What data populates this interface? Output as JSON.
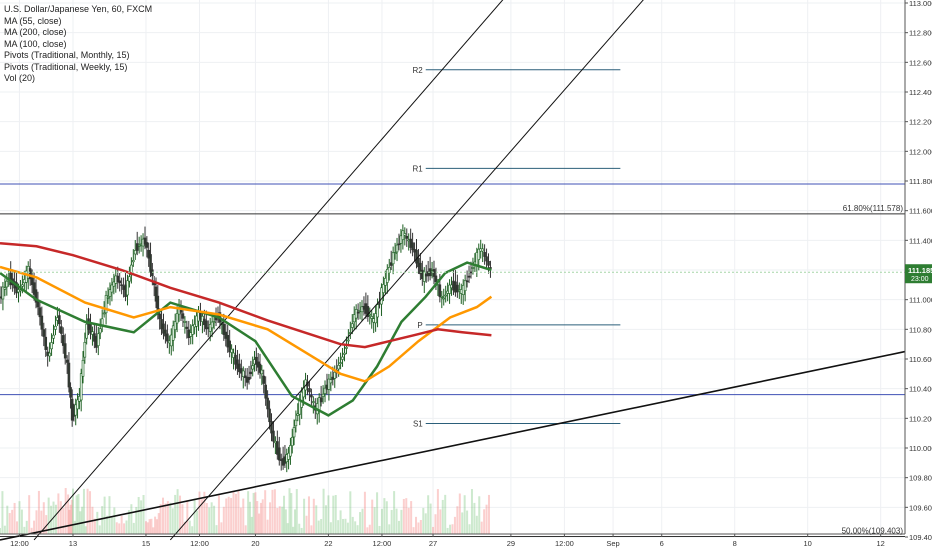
{
  "legend": {
    "symbol_line": "U.S. Dollar/Japanese Yen, 60, FXCM",
    "indicators": [
      "MA (55, close)",
      "MA (200, close)",
      "MA (100, close)",
      "Pivots (Traditional, Monthly, 15)",
      "Pivots (Traditional, Weekly, 15)",
      "Vol (20)"
    ]
  },
  "chart_data": {
    "type": "line",
    "title": "U.S. Dollar/Japanese Yen, 60, FXCM",
    "xlabel": "",
    "ylabel": "",
    "ylim": [
      109.4,
      113.0
    ],
    "y_ticks": [
      "113.000",
      "112.800",
      "112.600",
      "112.400",
      "112.200",
      "112.000",
      "111.800",
      "111.600",
      "111.400",
      "111.200",
      "111.000",
      "110.800",
      "110.600",
      "110.400",
      "110.200",
      "110.000",
      "109.800",
      "109.600",
      "109.400"
    ],
    "x_ticks": [
      "12:00",
      "13",
      "15",
      "12:00",
      "20",
      "22",
      "12:00",
      "27",
      "29",
      "12:00",
      "Sep",
      "6",
      "8",
      "10",
      "12"
    ],
    "x_range_index": [
      0,
      372
    ],
    "x_tick_index": [
      8,
      30,
      60,
      82,
      105,
      135,
      157,
      178,
      210,
      232,
      252,
      272,
      302,
      332,
      362
    ],
    "last_price": {
      "value": 111.185,
      "label": "111.185",
      "countdown": "23:00"
    },
    "fib_levels": [
      {
        "label": "61.80%(111.578)",
        "value": 111.578
      },
      {
        "label": "50.00%(109.403)",
        "value": 109.403
      }
    ],
    "pivots_weekly": [
      {
        "label": "R2",
        "value": 112.55
      },
      {
        "label": "R1",
        "value": 111.885
      },
      {
        "label": "P",
        "value": 110.83
      },
      {
        "label": "S1",
        "value": 110.165
      }
    ],
    "pivot_x_range": [
      175,
      255
    ],
    "monthly_levels": [
      111.78,
      110.36
    ],
    "price_path": [
      [
        0,
        111.0
      ],
      [
        4,
        111.15
      ],
      [
        8,
        111.05
      ],
      [
        12,
        111.2
      ],
      [
        16,
        110.95
      ],
      [
        20,
        110.6
      ],
      [
        24,
        110.9
      ],
      [
        28,
        110.55
      ],
      [
        30,
        110.2
      ],
      [
        33,
        110.35
      ],
      [
        36,
        110.85
      ],
      [
        40,
        110.7
      ],
      [
        44,
        111.0
      ],
      [
        48,
        111.15
      ],
      [
        52,
        111.05
      ],
      [
        56,
        111.35
      ],
      [
        60,
        111.4
      ],
      [
        63,
        111.15
      ],
      [
        66,
        110.85
      ],
      [
        70,
        110.7
      ],
      [
        74,
        110.95
      ],
      [
        78,
        110.75
      ],
      [
        82,
        110.9
      ],
      [
        86,
        110.8
      ],
      [
        90,
        110.9
      ],
      [
        94,
        110.7
      ],
      [
        98,
        110.55
      ],
      [
        102,
        110.45
      ],
      [
        105,
        110.6
      ],
      [
        108,
        110.5
      ],
      [
        112,
        110.1
      ],
      [
        116,
        109.9
      ],
      [
        119,
        109.95
      ],
      [
        122,
        110.2
      ],
      [
        126,
        110.45
      ],
      [
        130,
        110.25
      ],
      [
        134,
        110.4
      ],
      [
        138,
        110.5
      ],
      [
        142,
        110.65
      ],
      [
        146,
        110.9
      ],
      [
        150,
        110.95
      ],
      [
        154,
        110.85
      ],
      [
        158,
        111.1
      ],
      [
        162,
        111.3
      ],
      [
        166,
        111.45
      ],
      [
        170,
        111.35
      ],
      [
        174,
        111.15
      ],
      [
        178,
        111.2
      ],
      [
        182,
        111.0
      ],
      [
        186,
        111.1
      ],
      [
        190,
        111.05
      ],
      [
        194,
        111.2
      ],
      [
        198,
        111.35
      ],
      [
        202,
        111.2
      ]
    ],
    "series": [
      {
        "name": "MA (55, close)",
        "color": "#2e7d32",
        "values": [
          [
            0,
            111.18
          ],
          [
            15,
            111.0
          ],
          [
            35,
            110.85
          ],
          [
            55,
            110.78
          ],
          [
            70,
            110.98
          ],
          [
            90,
            110.88
          ],
          [
            105,
            110.72
          ],
          [
            120,
            110.35
          ],
          [
            135,
            110.22
          ],
          [
            145,
            110.32
          ],
          [
            155,
            110.55
          ],
          [
            165,
            110.85
          ],
          [
            175,
            111.02
          ],
          [
            183,
            111.18
          ],
          [
            192,
            111.25
          ],
          [
            202,
            111.2
          ]
        ]
      },
      {
        "name": "MA (100, close)",
        "color": "#ff9800",
        "values": [
          [
            0,
            111.22
          ],
          [
            15,
            111.15
          ],
          [
            35,
            110.98
          ],
          [
            55,
            110.88
          ],
          [
            70,
            110.95
          ],
          [
            90,
            110.9
          ],
          [
            110,
            110.8
          ],
          [
            125,
            110.65
          ],
          [
            140,
            110.5
          ],
          [
            150,
            110.45
          ],
          [
            160,
            110.55
          ],
          [
            172,
            110.72
          ],
          [
            185,
            110.88
          ],
          [
            196,
            110.95
          ],
          [
            202,
            111.02
          ]
        ]
      },
      {
        "name": "MA (200, close)",
        "color": "#c62828",
        "values": [
          [
            0,
            111.38
          ],
          [
            15,
            111.36
          ],
          [
            30,
            111.3
          ],
          [
            50,
            111.2
          ],
          [
            70,
            111.08
          ],
          [
            90,
            110.98
          ],
          [
            110,
            110.86
          ],
          [
            125,
            110.78
          ],
          [
            140,
            110.7
          ],
          [
            150,
            110.68
          ],
          [
            160,
            110.72
          ],
          [
            170,
            110.76
          ],
          [
            180,
            110.8
          ],
          [
            190,
            110.78
          ],
          [
            202,
            110.76
          ]
        ]
      }
    ],
    "trendlines": [
      {
        "from": [
          14,
          109.38
        ],
        "to": [
          232,
          113.5
        ]
      },
      {
        "from": [
          70,
          109.38
        ],
        "to": [
          290,
          113.5
        ]
      },
      {
        "from": [
          0,
          109.38
        ],
        "to": [
          372,
          110.65
        ]
      }
    ],
    "grid": true
  }
}
